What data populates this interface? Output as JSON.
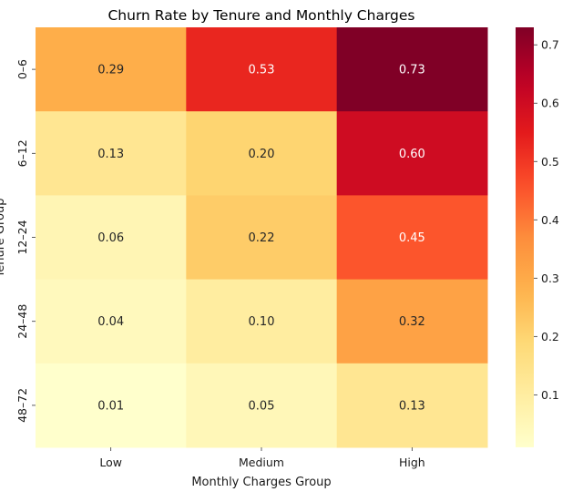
{
  "chart_data": {
    "type": "heatmap",
    "title": "Churn Rate by Tenure and Monthly Charges",
    "xlabel": "Monthly Charges Group",
    "ylabel": "Tenure Group",
    "x_categories": [
      "Low",
      "Medium",
      "High"
    ],
    "y_categories": [
      "0–6",
      "6–12",
      "12–24",
      "24–48",
      "48–72"
    ],
    "values": [
      [
        0.29,
        0.53,
        0.73
      ],
      [
        0.13,
        0.2,
        0.6
      ],
      [
        0.06,
        0.22,
        0.45
      ],
      [
        0.04,
        0.1,
        0.32
      ],
      [
        0.01,
        0.05,
        0.13
      ]
    ],
    "value_labels": [
      [
        "0.29",
        "0.53",
        "0.73"
      ],
      [
        "0.13",
        "0.20",
        "0.60"
      ],
      [
        "0.06",
        "0.22",
        "0.45"
      ],
      [
        "0.04",
        "0.10",
        "0.32"
      ],
      [
        "0.01",
        "0.05",
        "0.13"
      ]
    ],
    "colormap": "YlOrRd",
    "colorbar": {
      "range": [
        0.01,
        0.73
      ],
      "ticks": [
        0.1,
        0.2,
        0.3,
        0.4,
        0.5,
        0.6,
        0.7
      ],
      "tick_labels": [
        "0.1",
        "0.2",
        "0.3",
        "0.4",
        "0.5",
        "0.6",
        "0.7"
      ]
    },
    "grid": false,
    "legend": "colorbar-right"
  }
}
